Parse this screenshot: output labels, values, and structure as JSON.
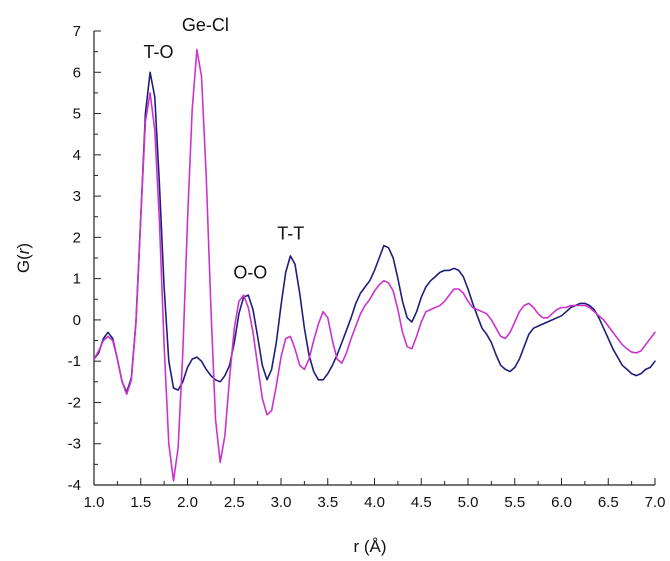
{
  "chart_data": {
    "type": "line",
    "title": "",
    "xlabel": "r (Å)",
    "ylabel_prefix": "G(",
    "ylabel_var": "r",
    "ylabel_suffix": ")",
    "xlim": [
      1.0,
      7.0
    ],
    "ylim": [
      -4,
      7
    ],
    "xticks": [
      "1.0",
      "1.5",
      "2.0",
      "2.5",
      "3.0",
      "3.5",
      "4.0",
      "4.5",
      "5.0",
      "5.5",
      "6.0",
      "6.5",
      "7.0"
    ],
    "yticks": [
      "-4",
      "-3",
      "-2",
      "-1",
      "0",
      "1",
      "2",
      "3",
      "4",
      "5",
      "6",
      "7"
    ],
    "grid": false,
    "legend": "none",
    "annotations": [
      {
        "text": "T-O",
        "x": 1.53,
        "y": 6.35
      },
      {
        "text": "Ge-Cl",
        "x": 1.94,
        "y": 7.0
      },
      {
        "text": "O-O",
        "x": 2.49,
        "y": 1.0
      },
      {
        "text": "T-T",
        "x": 2.96,
        "y": 1.95
      }
    ],
    "series": [
      {
        "color": "#1f1f7a",
        "points": [
          [
            1.0,
            -0.95
          ],
          [
            1.05,
            -0.8
          ],
          [
            1.1,
            -0.45
          ],
          [
            1.15,
            -0.3
          ],
          [
            1.2,
            -0.45
          ],
          [
            1.25,
            -0.95
          ],
          [
            1.3,
            -1.5
          ],
          [
            1.35,
            -1.75
          ],
          [
            1.4,
            -1.4
          ],
          [
            1.45,
            0.0
          ],
          [
            1.5,
            2.5
          ],
          [
            1.55,
            5.0
          ],
          [
            1.6,
            6.0
          ],
          [
            1.65,
            5.4
          ],
          [
            1.7,
            3.3
          ],
          [
            1.75,
            0.8
          ],
          [
            1.8,
            -1.0
          ],
          [
            1.85,
            -1.65
          ],
          [
            1.9,
            -1.7
          ],
          [
            1.95,
            -1.5
          ],
          [
            2.0,
            -1.15
          ],
          [
            2.05,
            -0.95
          ],
          [
            2.1,
            -0.9
          ],
          [
            2.15,
            -1.0
          ],
          [
            2.2,
            -1.2
          ],
          [
            2.25,
            -1.35
          ],
          [
            2.3,
            -1.45
          ],
          [
            2.35,
            -1.5
          ],
          [
            2.4,
            -1.35
          ],
          [
            2.45,
            -1.1
          ],
          [
            2.5,
            -0.55
          ],
          [
            2.55,
            0.15
          ],
          [
            2.6,
            0.55
          ],
          [
            2.65,
            0.6
          ],
          [
            2.7,
            0.25
          ],
          [
            2.75,
            -0.4
          ],
          [
            2.8,
            -1.1
          ],
          [
            2.85,
            -1.45
          ],
          [
            2.9,
            -1.2
          ],
          [
            2.95,
            -0.55
          ],
          [
            3.0,
            0.35
          ],
          [
            3.05,
            1.15
          ],
          [
            3.1,
            1.55
          ],
          [
            3.15,
            1.35
          ],
          [
            3.2,
            0.65
          ],
          [
            3.25,
            -0.2
          ],
          [
            3.3,
            -0.85
          ],
          [
            3.35,
            -1.25
          ],
          [
            3.4,
            -1.45
          ],
          [
            3.45,
            -1.45
          ],
          [
            3.5,
            -1.3
          ],
          [
            3.55,
            -1.1
          ],
          [
            3.6,
            -0.85
          ],
          [
            3.65,
            -0.55
          ],
          [
            3.7,
            -0.25
          ],
          [
            3.75,
            0.05
          ],
          [
            3.8,
            0.4
          ],
          [
            3.85,
            0.65
          ],
          [
            3.9,
            0.8
          ],
          [
            3.95,
            0.95
          ],
          [
            4.0,
            1.2
          ],
          [
            4.05,
            1.5
          ],
          [
            4.1,
            1.8
          ],
          [
            4.15,
            1.75
          ],
          [
            4.2,
            1.5
          ],
          [
            4.25,
            1.0
          ],
          [
            4.3,
            0.45
          ],
          [
            4.35,
            0.05
          ],
          [
            4.4,
            -0.05
          ],
          [
            4.45,
            0.2
          ],
          [
            4.5,
            0.55
          ],
          [
            4.55,
            0.8
          ],
          [
            4.6,
            0.95
          ],
          [
            4.65,
            1.05
          ],
          [
            4.7,
            1.15
          ],
          [
            4.75,
            1.2
          ],
          [
            4.8,
            1.2
          ],
          [
            4.85,
            1.25
          ],
          [
            4.9,
            1.2
          ],
          [
            4.95,
            1.05
          ],
          [
            5.0,
            0.75
          ],
          [
            5.05,
            0.4
          ],
          [
            5.1,
            0.1
          ],
          [
            5.15,
            -0.2
          ],
          [
            5.2,
            -0.35
          ],
          [
            5.25,
            -0.55
          ],
          [
            5.3,
            -0.85
          ],
          [
            5.35,
            -1.1
          ],
          [
            5.4,
            -1.2
          ],
          [
            5.45,
            -1.25
          ],
          [
            5.5,
            -1.15
          ],
          [
            5.55,
            -0.95
          ],
          [
            5.6,
            -0.65
          ],
          [
            5.65,
            -0.35
          ],
          [
            5.7,
            -0.2
          ],
          [
            5.75,
            -0.15
          ],
          [
            5.8,
            -0.1
          ],
          [
            5.85,
            -0.05
          ],
          [
            5.9,
            0.0
          ],
          [
            5.95,
            0.05
          ],
          [
            6.0,
            0.1
          ],
          [
            6.05,
            0.2
          ],
          [
            6.1,
            0.3
          ],
          [
            6.15,
            0.35
          ],
          [
            6.2,
            0.4
          ],
          [
            6.25,
            0.4
          ],
          [
            6.3,
            0.35
          ],
          [
            6.35,
            0.25
          ],
          [
            6.4,
            0.05
          ],
          [
            6.45,
            -0.2
          ],
          [
            6.5,
            -0.45
          ],
          [
            6.55,
            -0.7
          ],
          [
            6.6,
            -0.9
          ],
          [
            6.65,
            -1.1
          ],
          [
            6.7,
            -1.2
          ],
          [
            6.75,
            -1.3
          ],
          [
            6.8,
            -1.35
          ],
          [
            6.85,
            -1.3
          ],
          [
            6.9,
            -1.2
          ],
          [
            6.95,
            -1.15
          ],
          [
            7.0,
            -1.0
          ]
        ]
      },
      {
        "color": "#cc33cc",
        "points": [
          [
            1.0,
            -0.95
          ],
          [
            1.05,
            -0.75
          ],
          [
            1.1,
            -0.5
          ],
          [
            1.15,
            -0.4
          ],
          [
            1.2,
            -0.5
          ],
          [
            1.25,
            -0.95
          ],
          [
            1.3,
            -1.5
          ],
          [
            1.35,
            -1.8
          ],
          [
            1.4,
            -1.45
          ],
          [
            1.45,
            0.0
          ],
          [
            1.5,
            2.5
          ],
          [
            1.55,
            4.8
          ],
          [
            1.6,
            5.5
          ],
          [
            1.65,
            4.6
          ],
          [
            1.7,
            2.4
          ],
          [
            1.75,
            -0.6
          ],
          [
            1.8,
            -3.0
          ],
          [
            1.85,
            -3.9
          ],
          [
            1.9,
            -3.1
          ],
          [
            1.95,
            -0.8
          ],
          [
            2.0,
            2.4
          ],
          [
            2.05,
            5.1
          ],
          [
            2.1,
            6.55
          ],
          [
            2.15,
            5.9
          ],
          [
            2.2,
            3.5
          ],
          [
            2.25,
            0.3
          ],
          [
            2.3,
            -2.4
          ],
          [
            2.35,
            -3.45
          ],
          [
            2.4,
            -2.8
          ],
          [
            2.45,
            -1.4
          ],
          [
            2.5,
            -0.2
          ],
          [
            2.55,
            0.45
          ],
          [
            2.6,
            0.6
          ],
          [
            2.65,
            0.3
          ],
          [
            2.7,
            -0.3
          ],
          [
            2.75,
            -1.1
          ],
          [
            2.8,
            -1.9
          ],
          [
            2.85,
            -2.3
          ],
          [
            2.9,
            -2.2
          ],
          [
            2.95,
            -1.6
          ],
          [
            3.0,
            -0.9
          ],
          [
            3.05,
            -0.45
          ],
          [
            3.1,
            -0.4
          ],
          [
            3.15,
            -0.7
          ],
          [
            3.2,
            -1.1
          ],
          [
            3.25,
            -1.2
          ],
          [
            3.3,
            -0.95
          ],
          [
            3.35,
            -0.5
          ],
          [
            3.4,
            -0.1
          ],
          [
            3.45,
            0.2
          ],
          [
            3.5,
            0.05
          ],
          [
            3.55,
            -0.5
          ],
          [
            3.6,
            -0.95
          ],
          [
            3.65,
            -1.05
          ],
          [
            3.7,
            -0.8
          ],
          [
            3.75,
            -0.45
          ],
          [
            3.8,
            -0.15
          ],
          [
            3.85,
            0.15
          ],
          [
            3.9,
            0.35
          ],
          [
            3.95,
            0.5
          ],
          [
            4.0,
            0.7
          ],
          [
            4.05,
            0.85
          ],
          [
            4.1,
            0.95
          ],
          [
            4.15,
            0.9
          ],
          [
            4.2,
            0.7
          ],
          [
            4.25,
            0.25
          ],
          [
            4.3,
            -0.3
          ],
          [
            4.35,
            -0.65
          ],
          [
            4.4,
            -0.7
          ],
          [
            4.45,
            -0.4
          ],
          [
            4.5,
            -0.05
          ],
          [
            4.55,
            0.2
          ],
          [
            4.6,
            0.25
          ],
          [
            4.65,
            0.3
          ],
          [
            4.7,
            0.35
          ],
          [
            4.75,
            0.45
          ],
          [
            4.8,
            0.6
          ],
          [
            4.85,
            0.75
          ],
          [
            4.9,
            0.75
          ],
          [
            4.95,
            0.65
          ],
          [
            5.0,
            0.45
          ],
          [
            5.05,
            0.3
          ],
          [
            5.1,
            0.25
          ],
          [
            5.15,
            0.2
          ],
          [
            5.2,
            0.15
          ],
          [
            5.25,
            0.0
          ],
          [
            5.3,
            -0.2
          ],
          [
            5.35,
            -0.4
          ],
          [
            5.4,
            -0.45
          ],
          [
            5.45,
            -0.3
          ],
          [
            5.5,
            -0.05
          ],
          [
            5.55,
            0.2
          ],
          [
            5.6,
            0.35
          ],
          [
            5.65,
            0.4
          ],
          [
            5.7,
            0.3
          ],
          [
            5.75,
            0.15
          ],
          [
            5.8,
            0.05
          ],
          [
            5.85,
            0.05
          ],
          [
            5.9,
            0.15
          ],
          [
            5.95,
            0.25
          ],
          [
            6.0,
            0.3
          ],
          [
            6.05,
            0.3
          ],
          [
            6.1,
            0.35
          ],
          [
            6.15,
            0.35
          ],
          [
            6.2,
            0.35
          ],
          [
            6.25,
            0.35
          ],
          [
            6.3,
            0.3
          ],
          [
            6.35,
            0.2
          ],
          [
            6.4,
            0.1
          ],
          [
            6.45,
            0.0
          ],
          [
            6.5,
            -0.15
          ],
          [
            6.55,
            -0.3
          ],
          [
            6.6,
            -0.45
          ],
          [
            6.65,
            -0.6
          ],
          [
            6.7,
            -0.7
          ],
          [
            6.75,
            -0.78
          ],
          [
            6.8,
            -0.8
          ],
          [
            6.85,
            -0.75
          ],
          [
            6.9,
            -0.6
          ],
          [
            6.95,
            -0.45
          ],
          [
            7.0,
            -0.3
          ]
        ]
      }
    ]
  }
}
